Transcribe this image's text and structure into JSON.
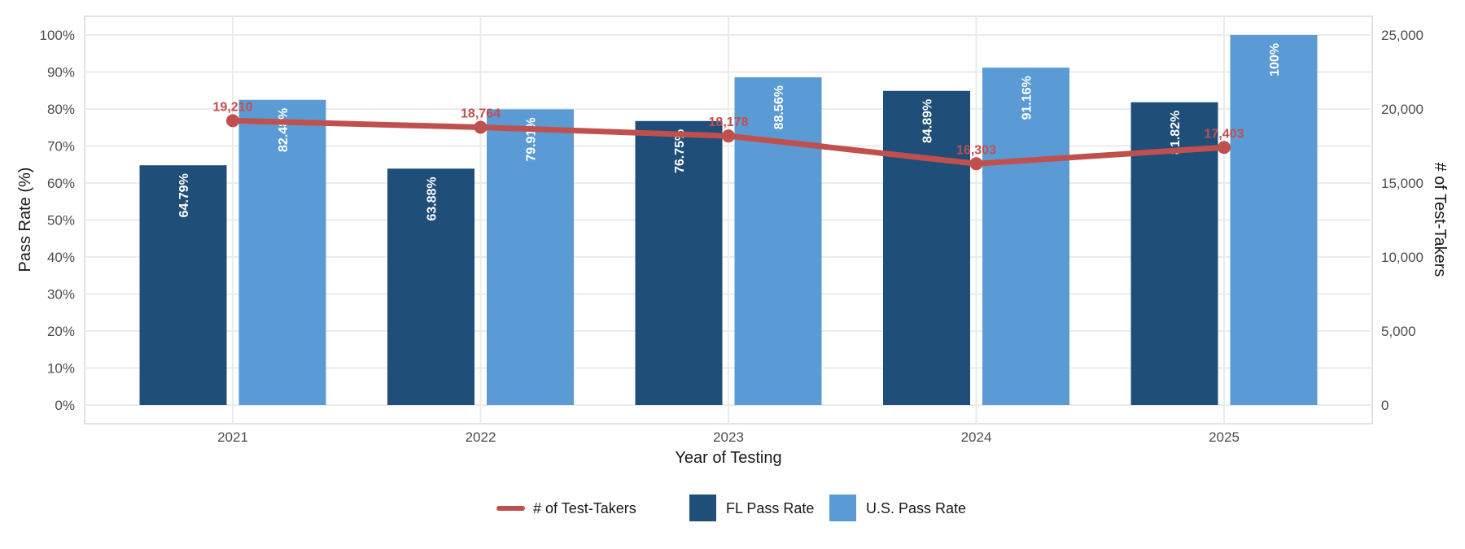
{
  "chart_data": {
    "type": "bar",
    "title": "",
    "xlabel": "Year of Testing",
    "ylabel": "Pass Rate (%)",
    "y2label": "# of Test-Takers",
    "categories": [
      "2021",
      "2022",
      "2023",
      "2024",
      "2025"
    ],
    "ylim": [
      0,
      100
    ],
    "y_ticks": [
      "0%",
      "10%",
      "20%",
      "30%",
      "40%",
      "50%",
      "60%",
      "70%",
      "80%",
      "90%",
      "100%"
    ],
    "y2lim": [
      0,
      25000
    ],
    "y2_ticks": [
      "0",
      "5,000",
      "10,000",
      "15,000",
      "20,000",
      "25,000"
    ],
    "series": [
      {
        "name": "FL Pass Rate",
        "kind": "bar",
        "color": "#1f4e79",
        "values": [
          64.79,
          63.88,
          76.75,
          84.89,
          81.82
        ],
        "labels": [
          "64.79%",
          "63.88%",
          "76.75%",
          "84.89%",
          "81.82%"
        ]
      },
      {
        "name": "U.S. Pass Rate",
        "kind": "bar",
        "color": "#5b9bd5",
        "values": [
          82.48,
          79.91,
          88.56,
          91.16,
          100
        ],
        "labels": [
          "82.48%",
          "79.91%",
          "88.56%",
          "91.16%",
          "100%"
        ]
      },
      {
        "name": "# of Test-Takers",
        "kind": "line",
        "axis": "secondary",
        "color": "#c0504d",
        "values": [
          19210,
          18764,
          18178,
          16303,
          17403
        ],
        "labels": [
          "19,210",
          "18,764",
          "18,178",
          "16,303",
          "17,403"
        ]
      }
    ],
    "legend": {
      "position": "bottom",
      "items": [
        "# of Test-Takers",
        "FL Pass Rate",
        "U.S. Pass Rate"
      ]
    },
    "grid": true
  }
}
